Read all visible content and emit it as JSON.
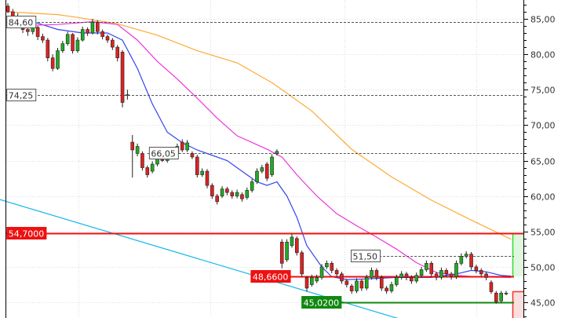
{
  "chart_data": {
    "type": "candlestick",
    "title": "",
    "xlabel": "",
    "ylabel": "",
    "ylim": [
      43,
      87.5
    ],
    "grid": true,
    "y_ticks": [
      "85,00",
      "80,00",
      "75,00",
      "70,00",
      "65,00",
      "60,00",
      "55,00",
      "50,00",
      "45,00"
    ],
    "y_tick_values": [
      85,
      80,
      75,
      70,
      65,
      60,
      55,
      50,
      45
    ],
    "colors": {
      "up": "#22aa22",
      "down": "#dd2222",
      "ma_short": "#3344ee",
      "ma_mid": "#ee33dd",
      "ma_long": "#ffaa33",
      "trendline": "#22bbee",
      "support_red": "#ee1111",
      "support_green": "#118811"
    },
    "candles": [
      [
        86.8,
        87.2,
        85.8,
        86.0
      ],
      [
        86.0,
        86.4,
        84.8,
        85.3
      ],
      [
        85.2,
        85.8,
        84.2,
        84.6
      ],
      [
        84.6,
        84.9,
        83.0,
        83.5
      ],
      [
        83.5,
        84.0,
        82.6,
        83.2
      ],
      [
        83.2,
        84.2,
        82.8,
        83.8
      ],
      [
        83.8,
        84.0,
        82.0,
        82.5
      ],
      [
        82.5,
        82.9,
        81.6,
        82.0
      ],
      [
        82.0,
        82.3,
        79.0,
        79.5
      ],
      [
        79.5,
        80.0,
        77.6,
        78.0
      ],
      [
        78.0,
        80.9,
        77.8,
        80.5
      ],
      [
        80.5,
        81.9,
        80.2,
        81.5
      ],
      [
        81.5,
        83.2,
        81.2,
        82.8
      ],
      [
        82.8,
        83.0,
        80.1,
        80.5
      ],
      [
        80.5,
        82.4,
        80.2,
        82.0
      ],
      [
        82.0,
        83.9,
        81.8,
        83.5
      ],
      [
        83.5,
        83.8,
        82.6,
        83.0
      ],
      [
        83.0,
        85.0,
        82.8,
        84.5
      ],
      [
        84.5,
        84.8,
        82.8,
        83.2
      ],
      [
        83.2,
        83.5,
        82.1,
        82.5
      ],
      [
        82.5,
        82.8,
        81.6,
        82.0
      ],
      [
        82.0,
        82.3,
        80.6,
        81.0
      ],
      [
        81.0,
        81.3,
        79.0,
        79.5
      ],
      [
        80.3,
        80.6,
        72.5,
        73.2
      ],
      [
        74.2,
        75.0,
        73.6,
        74.3
      ],
      [
        67.6,
        68.6,
        62.6,
        66.5
      ],
      [
        66.0,
        67.4,
        65.6,
        67.0
      ],
      [
        66.0,
        66.3,
        63.6,
        64.0
      ],
      [
        64.0,
        64.3,
        62.6,
        63.0
      ],
      [
        63.5,
        64.9,
        63.2,
        64.5
      ],
      [
        64.5,
        66.4,
        64.2,
        66.0
      ],
      [
        65.6,
        66.0,
        64.8,
        65.0
      ],
      [
        65.0,
        65.9,
        64.7,
        65.5
      ],
      [
        65.9,
        66.4,
        65.6,
        66.05
      ],
      [
        66.0,
        67.4,
        65.7,
        67.0
      ],
      [
        67.6,
        68.0,
        66.2,
        66.5
      ],
      [
        66.5,
        67.9,
        66.2,
        67.5
      ],
      [
        66.0,
        66.3,
        65.2,
        65.5
      ],
      [
        65.5,
        65.8,
        62.6,
        63.0
      ],
      [
        63.0,
        63.9,
        62.7,
        63.5
      ],
      [
        63.5,
        63.8,
        61.1,
        61.5
      ],
      [
        61.5,
        61.8,
        59.6,
        60.0
      ],
      [
        60.0,
        60.3,
        58.8,
        59.2
      ],
      [
        60.0,
        61.4,
        59.7,
        61.0
      ],
      [
        61.0,
        61.3,
        60.1,
        60.5
      ],
      [
        60.5,
        60.8,
        59.6,
        60.0
      ],
      [
        60.0,
        60.9,
        59.7,
        60.5
      ],
      [
        60.2,
        60.5,
        59.2,
        59.6
      ],
      [
        59.8,
        61.2,
        59.5,
        60.8
      ],
      [
        60.8,
        62.4,
        60.5,
        62.0
      ],
      [
        62.0,
        63.9,
        61.7,
        63.5
      ],
      [
        63.5,
        64.4,
        63.2,
        64.0
      ],
      [
        64.5,
        64.8,
        62.1,
        62.5
      ],
      [
        63.0,
        65.9,
        62.7,
        65.5
      ],
      [
        66.0,
        66.6,
        65.7,
        66.3
      ],
      [
        53.5,
        53.9,
        49.8,
        50.5
      ],
      [
        51.0,
        53.9,
        50.7,
        53.5
      ],
      [
        53.0,
        54.6,
        52.7,
        54.2
      ],
      [
        54.0,
        54.3,
        51.6,
        52.0
      ],
      [
        52.0,
        52.3,
        48.6,
        49.0
      ],
      [
        48.5,
        48.7,
        46.5,
        47.0
      ],
      [
        47.5,
        48.9,
        47.2,
        48.5
      ],
      [
        48.0,
        48.9,
        47.7,
        48.5
      ],
      [
        48.5,
        50.4,
        48.2,
        50.0
      ],
      [
        50.0,
        50.9,
        49.7,
        50.5
      ],
      [
        50.5,
        50.8,
        49.1,
        49.5
      ],
      [
        49.5,
        49.8,
        48.6,
        49.0
      ],
      [
        49.0,
        49.3,
        47.6,
        48.0
      ],
      [
        48.0,
        48.3,
        47.1,
        47.5
      ],
      [
        47.3,
        47.6,
        46.2,
        46.6
      ],
      [
        46.6,
        48.4,
        46.3,
        48.0
      ],
      [
        48.0,
        48.3,
        46.6,
        47.0
      ],
      [
        47.0,
        48.9,
        46.7,
        48.5
      ],
      [
        48.5,
        49.9,
        48.2,
        49.5
      ],
      [
        49.5,
        49.8,
        48.1,
        48.5
      ],
      [
        48.5,
        48.8,
        46.6,
        47.0
      ],
      [
        47.0,
        47.3,
        46.2,
        46.6
      ],
      [
        46.6,
        47.9,
        46.3,
        47.5
      ],
      [
        47.5,
        48.9,
        47.2,
        48.5
      ],
      [
        48.5,
        49.4,
        48.2,
        49.0
      ],
      [
        49.0,
        49.3,
        48.1,
        48.5
      ],
      [
        48.5,
        48.8,
        47.6,
        48.0
      ],
      [
        48.0,
        49.2,
        47.7,
        48.8
      ],
      [
        48.8,
        50.0,
        48.5,
        49.6
      ],
      [
        49.6,
        50.9,
        49.3,
        50.5
      ],
      [
        50.5,
        50.8,
        48.6,
        49.0
      ],
      [
        49.0,
        49.3,
        48.1,
        48.5
      ],
      [
        48.5,
        49.9,
        48.2,
        49.5
      ],
      [
        49.5,
        49.8,
        48.6,
        49.0
      ],
      [
        49.0,
        49.3,
        48.2,
        48.6
      ],
      [
        48.6,
        50.9,
        48.3,
        50.5
      ],
      [
        50.5,
        51.9,
        50.2,
        51.5
      ],
      [
        51.5,
        52.2,
        51.2,
        51.8
      ],
      [
        51.8,
        52.1,
        49.6,
        50.0
      ],
      [
        50.0,
        50.3,
        49.1,
        49.5
      ],
      [
        49.5,
        49.8,
        48.6,
        49.0
      ],
      [
        49.0,
        49.3,
        48.1,
        48.5
      ],
      [
        47.8,
        48.1,
        46.2,
        46.5
      ],
      [
        46.3,
        46.6,
        44.8,
        45.1
      ],
      [
        45.2,
        46.6,
        44.9,
        46.3
      ],
      [
        46.3,
        46.6,
        46.0,
        46.3
      ]
    ],
    "moving_averages": [
      {
        "key": "ma_short",
        "points": [
          [
            0,
            85.3
          ],
          [
            5,
            84.6
          ],
          [
            10,
            83.5
          ],
          [
            15,
            83
          ],
          [
            20,
            83
          ],
          [
            23,
            82
          ],
          [
            26,
            78
          ],
          [
            29,
            73
          ],
          [
            32,
            69
          ],
          [
            35,
            67.5
          ],
          [
            38,
            66.5
          ],
          [
            40,
            66
          ],
          [
            44,
            65
          ],
          [
            48,
            63
          ],
          [
            50,
            62
          ],
          [
            52,
            61.5
          ],
          [
            54,
            62
          ],
          [
            56,
            60
          ],
          [
            58,
            57
          ],
          [
            60,
            53
          ],
          [
            63,
            50
          ],
          [
            65,
            48.6
          ],
          [
            68,
            48.2
          ],
          [
            72,
            48.3
          ],
          [
            78,
            48.5
          ],
          [
            85,
            48.5
          ],
          [
            90,
            49
          ],
          [
            93,
            49.5
          ],
          [
            96,
            49.3
          ],
          [
            99,
            48.8
          ],
          [
            101,
            48.7
          ]
        ]
      },
      {
        "key": "ma_mid",
        "points": [
          [
            1,
            84
          ],
          [
            10,
            84.2
          ],
          [
            17,
            84.6
          ],
          [
            22,
            84.2
          ],
          [
            26,
            82
          ],
          [
            30,
            79
          ],
          [
            34,
            76.5
          ],
          [
            38,
            73.8
          ],
          [
            42,
            71
          ],
          [
            46,
            68.5
          ],
          [
            52,
            66.6
          ],
          [
            55,
            65.5
          ],
          [
            58,
            63
          ],
          [
            62,
            60
          ],
          [
            66,
            57.5
          ],
          [
            70,
            55.8
          ],
          [
            74,
            54.2
          ],
          [
            78,
            52.5
          ],
          [
            82,
            50.6
          ],
          [
            86,
            49.2
          ],
          [
            90,
            48.8
          ],
          [
            94,
            48.6
          ],
          [
            101,
            48.5
          ]
        ]
      },
      {
        "key": "ma_long",
        "points": [
          [
            0,
            86
          ],
          [
            10,
            85.6
          ],
          [
            14,
            85.2
          ],
          [
            22,
            84.3
          ],
          [
            30,
            82.7
          ],
          [
            38,
            80.5
          ],
          [
            46,
            78.8
          ],
          [
            53,
            76
          ],
          [
            61,
            72
          ],
          [
            69,
            66.6
          ],
          [
            77,
            62.7
          ],
          [
            85,
            59.4
          ],
          [
            93,
            56.6
          ],
          [
            101,
            53.9
          ]
        ]
      }
    ],
    "trendline": [
      [
        -1.6,
        59.5
      ],
      [
        80.3,
        42.3
      ]
    ],
    "levels": [
      {
        "value": 84.6,
        "label": "84,60",
        "style": "dashed",
        "from": -0.5,
        "label_at": -0.2,
        "box": "white"
      },
      {
        "value": 74.25,
        "label": "74,25",
        "style": "dashed",
        "from": -0.5,
        "label_at": -0.2,
        "box": "white"
      },
      {
        "value": 66.05,
        "label": "66,05",
        "style": "dashed",
        "from": 28,
        "label_at": 28.4,
        "box": "white"
      },
      {
        "value": 51.5,
        "label": "51,50",
        "style": "dashed",
        "from": 69,
        "label_at": 68.9,
        "box": "white"
      },
      {
        "value": 54.7,
        "label": "54,7000",
        "style": "red",
        "from": -0.5,
        "label_at": -0.2,
        "box": "red"
      },
      {
        "value": 48.66,
        "label": "48,6600",
        "style": "red",
        "from": 49,
        "label_at": 48.8,
        "box": "red"
      },
      {
        "value": 45.02,
        "label": "45,0200",
        "style": "green",
        "from": 59,
        "label_at": 59,
        "box": "green"
      }
    ],
    "target_zone": {
      "reward_top": 54.7,
      "entry": 48.66,
      "stop_top": 46.5
    }
  }
}
